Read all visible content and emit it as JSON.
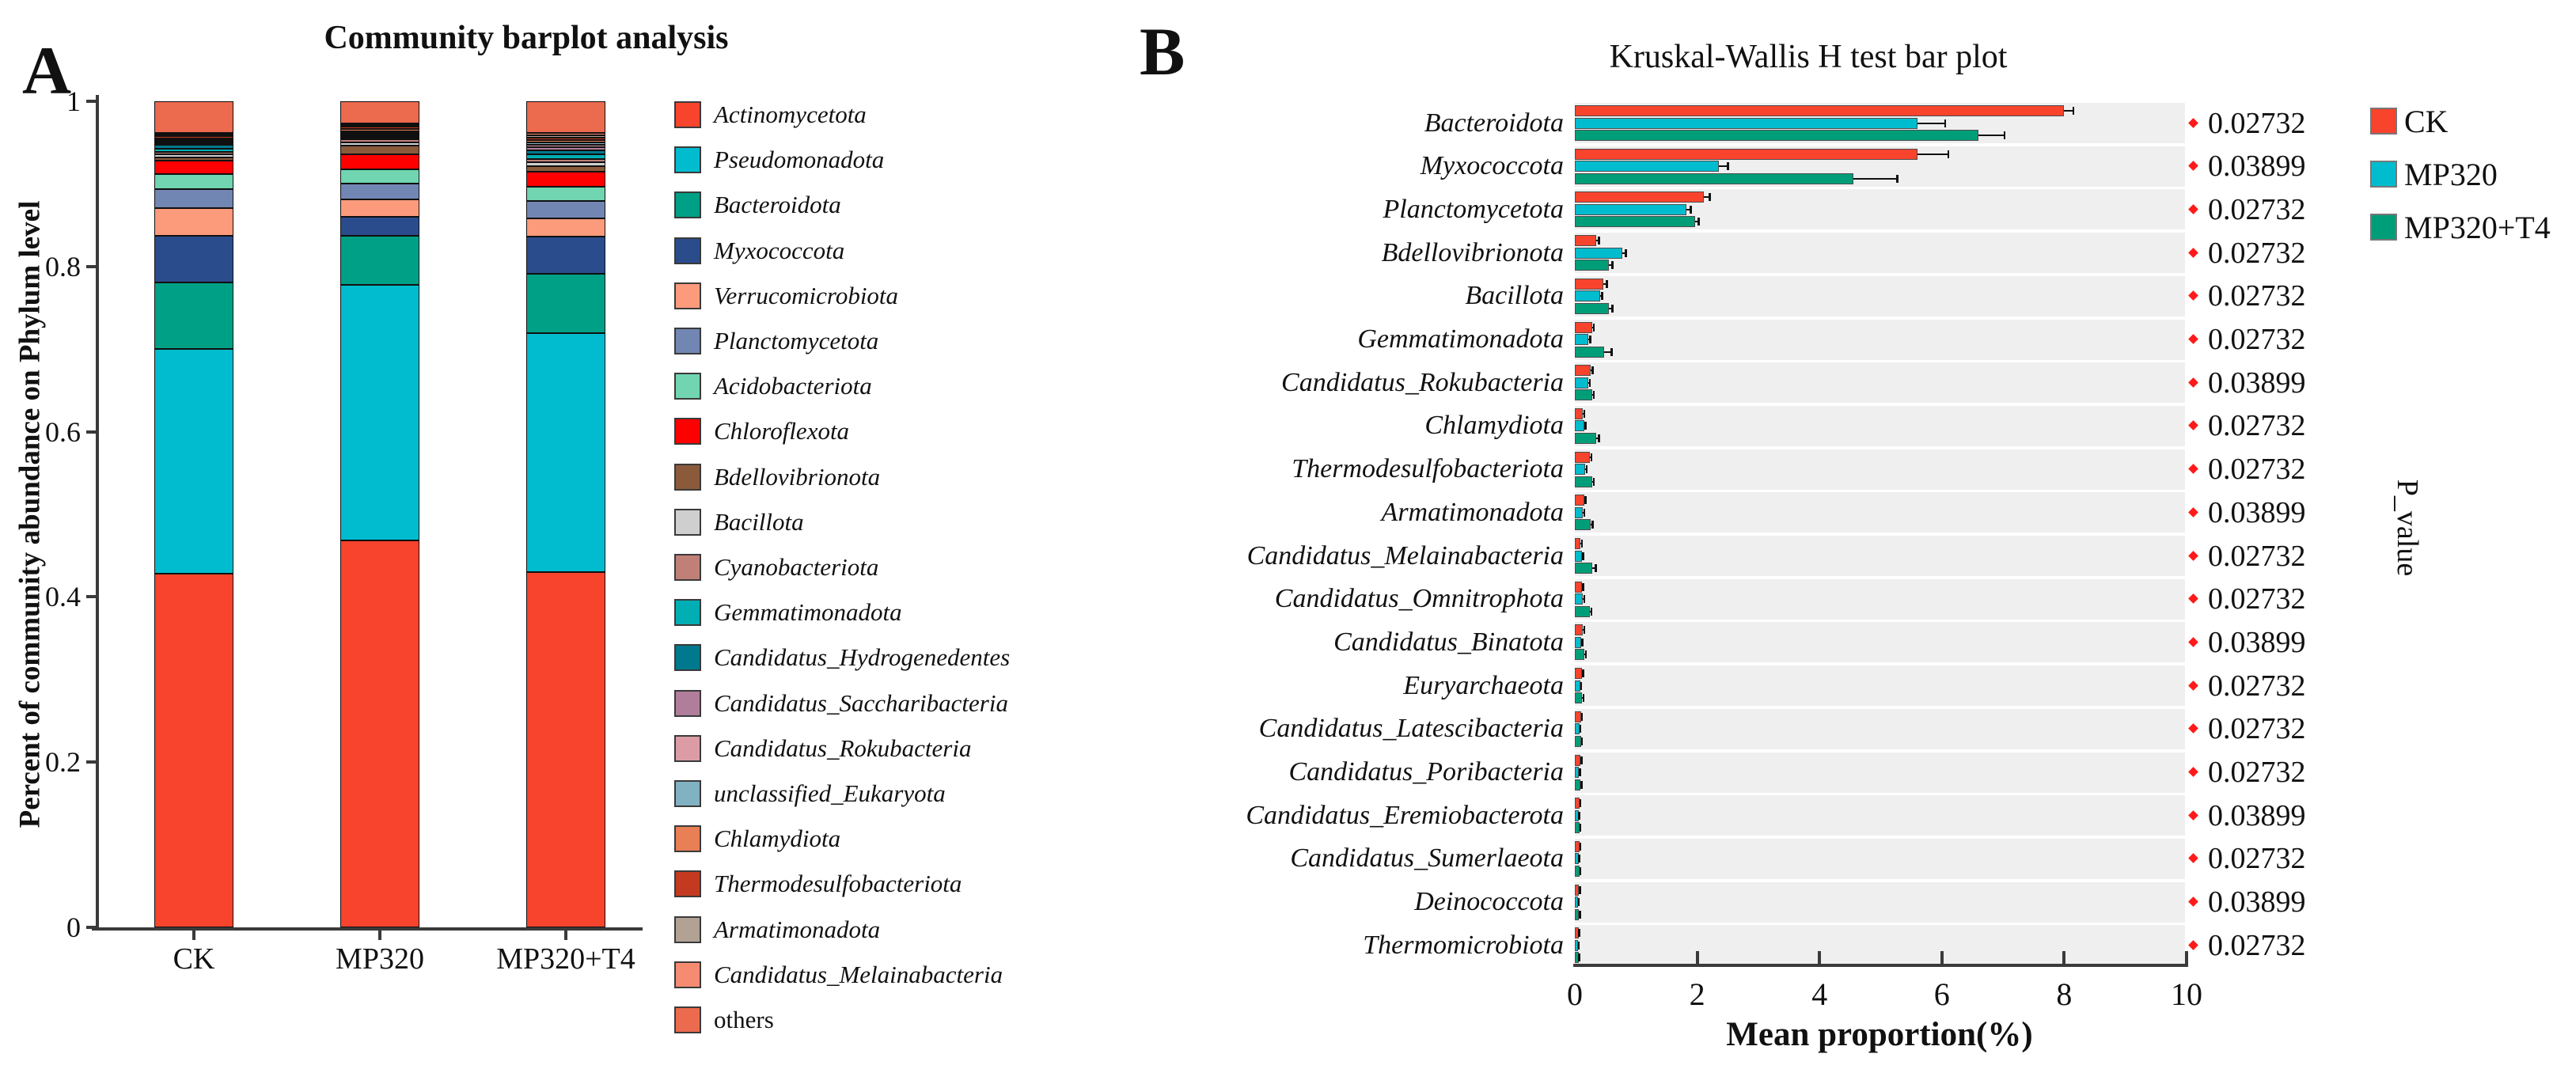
{
  "chart_data": [
    {
      "panel_label": "A",
      "type": "bar",
      "stacked": true,
      "orientation": "vertical",
      "title": "Community barplot analysis",
      "ylabel": "Percent of community abundance on Phylum level",
      "ylim": [
        0,
        1
      ],
      "ytick_labels": [
        "0",
        "0.2",
        "0.4",
        "0.6",
        "0.8",
        "1"
      ],
      "categories": [
        "CK",
        "MP320",
        "MP320+T4"
      ],
      "legend_position": "right",
      "grid": false,
      "series": [
        {
          "name": "Actinomycetota",
          "color": "#F8432D",
          "italic": true,
          "values": [
            0.428,
            0.468,
            0.43
          ]
        },
        {
          "name": "Pseudomonadota",
          "color": "#00BCCE",
          "italic": true,
          "values": [
            0.272,
            0.31,
            0.289
          ]
        },
        {
          "name": "Bacteroidota",
          "color": "#00A086",
          "italic": true,
          "values": [
            0.081,
            0.059,
            0.072
          ]
        },
        {
          "name": "Myxococcota",
          "color": "#2B4C8C",
          "italic": true,
          "values": [
            0.056,
            0.023,
            0.045
          ]
        },
        {
          "name": "Verrucomicrobiota",
          "color": "#FB9B7C",
          "italic": true,
          "values": [
            0.034,
            0.021,
            0.022
          ]
        },
        {
          "name": "Planctomycetota",
          "color": "#7286B4",
          "italic": true,
          "values": [
            0.023,
            0.019,
            0.021
          ]
        },
        {
          "name": "Acidobacteriota",
          "color": "#70D5B0",
          "italic": true,
          "values": [
            0.018,
            0.018,
            0.018
          ]
        },
        {
          "name": "Chloroflexota",
          "color": "#FE0000",
          "italic": true,
          "values": [
            0.016,
            0.018,
            0.018
          ]
        },
        {
          "name": "Bdellovibrionota",
          "color": "#8B5A3B",
          "italic": true,
          "values": [
            0.004,
            0.01,
            0.006
          ]
        },
        {
          "name": "Bacillota",
          "color": "#CFCFCF",
          "italic": true,
          "values": [
            0.004,
            0.004,
            0.005
          ]
        },
        {
          "name": "Cyanobacteriota",
          "color": "#C08078",
          "italic": true,
          "values": [
            0.003,
            0.004,
            0.004
          ]
        },
        {
          "name": "Gemmatimonadota",
          "color": "#00AEB4",
          "italic": true,
          "values": [
            0.004,
            0.002,
            0.006
          ]
        },
        {
          "name": "Candidatus_Hydrogenedentes",
          "color": "#00788E",
          "italic": true,
          "values": [
            0.004,
            0.002,
            0.005
          ]
        },
        {
          "name": "Candidatus_Saccharibacteria",
          "color": "#B07E9A",
          "italic": true,
          "values": [
            0.002,
            0.002,
            0.003
          ]
        },
        {
          "name": "Candidatus_Rokubacteria",
          "color": "#DC9CA6",
          "italic": true,
          "values": [
            0.002,
            0.002,
            0.003
          ]
        },
        {
          "name": "unclassified_Eukaryota",
          "color": "#80B2C2",
          "italic": true,
          "values": [
            0.002,
            0.002,
            0.003
          ]
        },
        {
          "name": "Chlamydiota",
          "color": "#E87F55",
          "italic": true,
          "values": [
            0.002,
            0.002,
            0.003
          ]
        },
        {
          "name": "Thermodesulfobacteriota",
          "color": "#C43A20",
          "italic": true,
          "values": [
            0.003,
            0.003,
            0.003
          ]
        },
        {
          "name": "Armatimonadota",
          "color": "#B2A294",
          "italic": true,
          "values": [
            0.002,
            0.002,
            0.003
          ]
        },
        {
          "name": "Candidatus_Melainabacteria",
          "color": "#F58C72",
          "italic": true,
          "values": [
            0.002,
            0.002,
            0.003
          ]
        },
        {
          "name": "others",
          "color": "#EC6A4E",
          "italic": false,
          "values": [
            0.038,
            0.027,
            0.038
          ]
        }
      ]
    },
    {
      "panel_label": "B",
      "type": "bar",
      "grouped": true,
      "orientation": "horizontal",
      "title": "Kruskal-Wallis  H test bar plot",
      "xlabel": "Mean proportion(%)",
      "xlim": [
        0,
        10
      ],
      "xtick_labels": [
        "0",
        "2",
        "4",
        "6",
        "8",
        "10"
      ],
      "right_axis_label": "P_value",
      "band_color": "#efefef",
      "marker_color": "#ff1a1a",
      "legend": [
        {
          "name": "CK",
          "color": "#F8432D"
        },
        {
          "name": "MP320",
          "color": "#00BCCE"
        },
        {
          "name": "MP320+T4",
          "color": "#009E78"
        }
      ],
      "rows": [
        {
          "name": "Bacteroidota",
          "values": [
            8.0,
            5.6,
            6.6
          ],
          "errors": [
            0.15,
            0.45,
            0.42
          ],
          "p": "0.02732"
        },
        {
          "name": "Myxococcota",
          "values": [
            5.6,
            2.35,
            4.55
          ],
          "errors": [
            0.5,
            0.15,
            0.72
          ],
          "p": "0.03899"
        },
        {
          "name": "Planctomycetota",
          "values": [
            2.11,
            1.83,
            1.96
          ],
          "errors": [
            0.09,
            0.06,
            0.06
          ],
          "p": "0.02732"
        },
        {
          "name": "Bdellovibrionota",
          "values": [
            0.35,
            0.78,
            0.56
          ],
          "errors": [
            0.04,
            0.05,
            0.05
          ],
          "p": "0.02732"
        },
        {
          "name": "Bacillota",
          "values": [
            0.47,
            0.41,
            0.56
          ],
          "errors": [
            0.05,
            0.03,
            0.05
          ],
          "p": "0.02732"
        },
        {
          "name": "Gemmatimonadota",
          "values": [
            0.28,
            0.22,
            0.48
          ],
          "errors": [
            0.03,
            0.03,
            0.12
          ],
          "p": "0.02732"
        },
        {
          "name": "Candidatus_Rokubacteria",
          "values": [
            0.26,
            0.22,
            0.28
          ],
          "errors": [
            0.03,
            0.02,
            0.03
          ],
          "p": "0.03899"
        },
        {
          "name": "Chlamydiota",
          "values": [
            0.13,
            0.15,
            0.35
          ],
          "errors": [
            0.02,
            0.02,
            0.04
          ],
          "p": "0.02732"
        },
        {
          "name": "Thermodesulfobacteriota",
          "values": [
            0.24,
            0.17,
            0.28
          ],
          "errors": [
            0.03,
            0.02,
            0.03
          ],
          "p": "0.02732"
        },
        {
          "name": "Armatimonadota",
          "values": [
            0.15,
            0.13,
            0.26
          ],
          "errors": [
            0.02,
            0.02,
            0.03
          ],
          "p": "0.03899"
        },
        {
          "name": "Candidatus_Melainabacteria",
          "values": [
            0.09,
            0.11,
            0.28
          ],
          "errors": [
            0.02,
            0.02,
            0.06
          ],
          "p": "0.02732"
        },
        {
          "name": "Candidatus_Omnitrophota",
          "values": [
            0.11,
            0.13,
            0.24
          ],
          "errors": [
            0.02,
            0.02,
            0.03
          ],
          "p": "0.02732"
        },
        {
          "name": "Candidatus_Binatota",
          "values": [
            0.13,
            0.1,
            0.15
          ],
          "errors": [
            0.02,
            0.02,
            0.03
          ],
          "p": "0.03899"
        },
        {
          "name": "Euryarchaeota",
          "values": [
            0.11,
            0.09,
            0.12
          ],
          "errors": [
            0.02,
            0.01,
            0.02
          ],
          "p": "0.02732"
        },
        {
          "name": "Candidatus_Latescibacteria",
          "values": [
            0.1,
            0.08,
            0.1
          ],
          "errors": [
            0.015,
            0.01,
            0.015
          ],
          "p": "0.02732"
        },
        {
          "name": "Candidatus_Poribacteria",
          "values": [
            0.09,
            0.07,
            0.09
          ],
          "errors": [
            0.015,
            0.01,
            0.015
          ],
          "p": "0.02732"
        },
        {
          "name": "Candidatus_Eremiobacterota",
          "values": [
            0.08,
            0.06,
            0.08
          ],
          "errors": [
            0.01,
            0.01,
            0.01
          ],
          "p": "0.03899"
        },
        {
          "name": "Candidatus_Sumerlaeota",
          "values": [
            0.08,
            0.06,
            0.08
          ],
          "errors": [
            0.01,
            0.01,
            0.01
          ],
          "p": "0.02732"
        },
        {
          "name": "Deinococcota",
          "values": [
            0.07,
            0.05,
            0.07
          ],
          "errors": [
            0.01,
            0.01,
            0.01
          ],
          "p": "0.03899"
        },
        {
          "name": "Thermomicrobiota",
          "values": [
            0.06,
            0.05,
            0.06
          ],
          "errors": [
            0.01,
            0.01,
            0.01
          ],
          "p": "0.02732"
        }
      ]
    }
  ]
}
